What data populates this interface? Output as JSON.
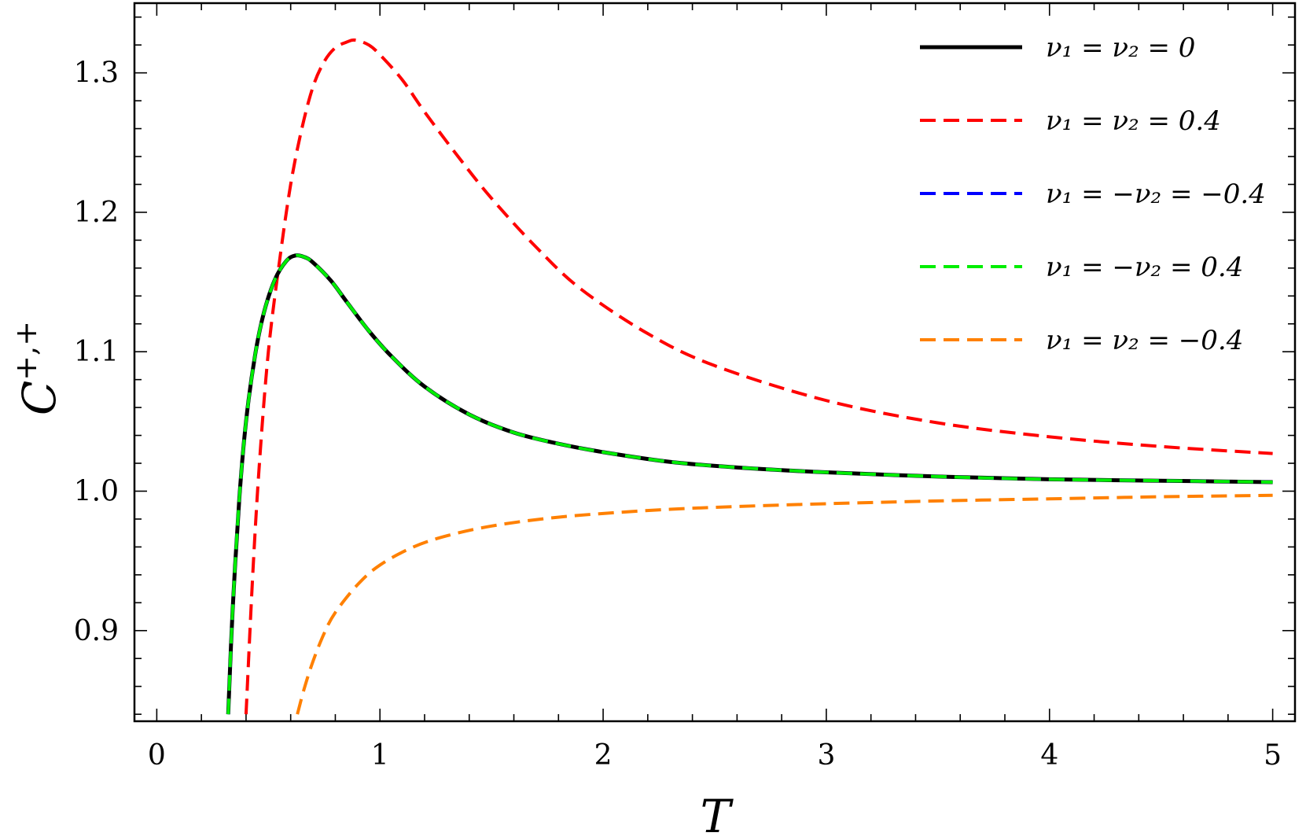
{
  "chart_data": {
    "type": "line",
    "title": "",
    "xlabel": "T",
    "ylabel": "C",
    "ylabel_superscript": "+,+",
    "xlim": [
      -0.1,
      5.1
    ],
    "ylim": [
      0.835,
      1.35
    ],
    "x_ticks": [
      {
        "value": 0,
        "label": "0"
      },
      {
        "value": 1,
        "label": "1"
      },
      {
        "value": 2,
        "label": "2"
      },
      {
        "value": 3,
        "label": "3"
      },
      {
        "value": 4,
        "label": "4"
      },
      {
        "value": 5,
        "label": "5"
      }
    ],
    "y_ticks": [
      {
        "value": 0.9,
        "label": "0.9"
      },
      {
        "value": 1.0,
        "label": "1.0"
      },
      {
        "value": 1.1,
        "label": "1.1"
      },
      {
        "value": 1.2,
        "label": "1.2"
      },
      {
        "value": 1.3,
        "label": "1.3"
      }
    ],
    "grid": false,
    "frame": true,
    "legend_position": "top-right",
    "series": [
      {
        "name": "ν₁ = ν₂ = 0",
        "color": "#000000",
        "dash": "solid",
        "x": [
          0.32,
          0.34,
          0.37,
          0.4,
          0.44,
          0.48,
          0.53,
          0.58,
          0.62,
          0.66,
          0.7,
          0.78,
          0.85,
          0.95,
          1.05,
          1.2,
          1.4,
          1.6,
          1.8,
          2.0,
          2.3,
          2.6,
          3.0,
          3.5,
          4.0,
          4.5,
          5.0
        ],
        "y": [
          0.84,
          0.915,
          0.995,
          1.05,
          1.097,
          1.128,
          1.152,
          1.165,
          1.169,
          1.168,
          1.164,
          1.151,
          1.136,
          1.115,
          1.097,
          1.075,
          1.055,
          1.042,
          1.034,
          1.028,
          1.021,
          1.017,
          1.0135,
          1.0105,
          1.0085,
          1.0075,
          1.0065
        ]
      },
      {
        "name": "ν₁ = ν₂ = 0.4",
        "color": "#ff0000",
        "dash": "dashed",
        "x": [
          0.4,
          0.43,
          0.46,
          0.5,
          0.55,
          0.6,
          0.65,
          0.7,
          0.75,
          0.8,
          0.85,
          0.89,
          0.95,
          1.0,
          1.1,
          1.2,
          1.35,
          1.5,
          1.7,
          1.9,
          2.2,
          2.5,
          3.0,
          3.5,
          4.0,
          4.5,
          5.0
        ],
        "y": [
          0.84,
          0.94,
          1.02,
          1.1,
          1.165,
          1.22,
          1.26,
          1.29,
          1.308,
          1.318,
          1.322,
          1.3235,
          1.32,
          1.313,
          1.295,
          1.272,
          1.24,
          1.21,
          1.175,
          1.145,
          1.113,
          1.09,
          1.065,
          1.049,
          1.039,
          1.032,
          1.027
        ]
      },
      {
        "name": "ν₁ = −ν₂ = −0.4",
        "color": "#0000ff",
        "dash": "dashed",
        "x": [
          0.32,
          0.34,
          0.37,
          0.4,
          0.44,
          0.48,
          0.53,
          0.58,
          0.62,
          0.66,
          0.7,
          0.78,
          0.85,
          0.95,
          1.05,
          1.2,
          1.4,
          1.6,
          1.8,
          2.0,
          2.3,
          2.6,
          3.0,
          3.5,
          4.0,
          4.5,
          5.0
        ],
        "y": [
          0.84,
          0.915,
          0.995,
          1.05,
          1.097,
          1.128,
          1.152,
          1.165,
          1.169,
          1.168,
          1.164,
          1.151,
          1.136,
          1.115,
          1.097,
          1.075,
          1.055,
          1.042,
          1.034,
          1.028,
          1.021,
          1.017,
          1.0135,
          1.0105,
          1.0085,
          1.0075,
          1.0065
        ]
      },
      {
        "name": "ν₁ = −ν₂ = 0.4",
        "color": "#00ee00",
        "dash": "dashed",
        "x": [
          0.32,
          0.34,
          0.37,
          0.4,
          0.44,
          0.48,
          0.53,
          0.58,
          0.62,
          0.66,
          0.7,
          0.78,
          0.85,
          0.95,
          1.05,
          1.2,
          1.4,
          1.6,
          1.8,
          2.0,
          2.3,
          2.6,
          3.0,
          3.5,
          4.0,
          4.5,
          5.0
        ],
        "y": [
          0.84,
          0.915,
          0.995,
          1.05,
          1.097,
          1.128,
          1.152,
          1.165,
          1.169,
          1.168,
          1.164,
          1.151,
          1.136,
          1.115,
          1.097,
          1.075,
          1.055,
          1.042,
          1.034,
          1.028,
          1.021,
          1.017,
          1.0135,
          1.0105,
          1.0085,
          1.0075,
          1.0065
        ]
      },
      {
        "name": "ν₁ = ν₂ = −0.4",
        "color": "#ff8000",
        "dash": "dashed",
        "x": [
          0.63,
          0.66,
          0.7,
          0.75,
          0.8,
          0.9,
          1.0,
          1.15,
          1.3,
          1.5,
          1.75,
          2.0,
          2.3,
          2.6,
          3.0,
          3.5,
          4.0,
          4.5,
          5.0
        ],
        "y": [
          0.84,
          0.858,
          0.878,
          0.898,
          0.913,
          0.933,
          0.947,
          0.96,
          0.968,
          0.975,
          0.9805,
          0.984,
          0.987,
          0.989,
          0.991,
          0.993,
          0.9945,
          0.996,
          0.997
        ]
      }
    ]
  }
}
